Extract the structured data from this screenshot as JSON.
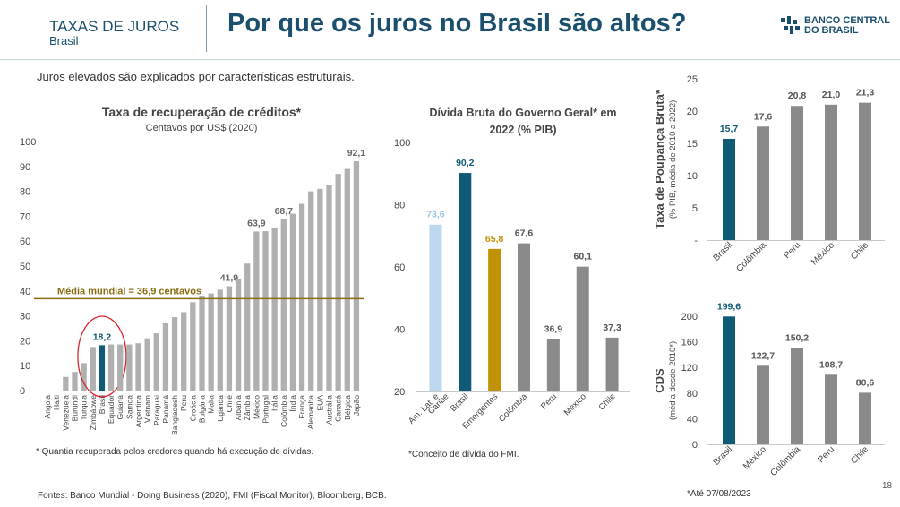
{
  "header": {
    "section": "TAXAS DE JUROS",
    "subsection": "Brasil",
    "title": "Por que os juros no Brasil são altos?",
    "logo_line1": "BANCO CENTRAL",
    "logo_line2": "DO BRASIL"
  },
  "subtitle": "Juros elevados são explicados por características estruturais.",
  "notes": {
    "left": "* Quantia recuperada pelos credores quando há execução de dívidas.",
    "middle": "*Conceito de dívida do FMI.",
    "right": "*Até 07/08/2023",
    "sources": "Fontes: Banco Mundial - Doing Business (2020), FMI (Fiscal Monitor), Bloomberg, BCB.",
    "page": "18"
  },
  "colors": {
    "highlight": "#0f5a74",
    "gray": "#b0b0b0",
    "darkgray": "#8a8a8a",
    "light_blue": "#bcd7ee",
    "gold": "#c29206",
    "average_line": "#8a6d12",
    "circle": "#d9232b",
    "title_blue": "#1b4f6e"
  },
  "chart_data": [
    {
      "type": "bar",
      "title": "Taxa de recuperação de créditos*",
      "subtitle": "Centavos por US$ (2020)",
      "ylim": [
        0,
        100
      ],
      "yticks": [
        "0",
        "10",
        "20",
        "30",
        "40",
        "50",
        "60",
        "70",
        "80",
        "90",
        "100"
      ],
      "categories": [
        "Angola",
        "Haiti",
        "Venezuela",
        "Burundi",
        "Turquia",
        "Zimbábwe",
        "Brasil",
        "Equador",
        "Guiana",
        "Samoa",
        "Argentina",
        "Vietnam",
        "Paraguai",
        "Panamá",
        "Bangladesh",
        "Peru",
        "Croácia",
        "Bulgária",
        "Malta",
        "Uganda",
        "Chile",
        "Albânia",
        "Zâmbia",
        "México",
        "Portugal",
        "Itália",
        "Colômbia",
        "Índia",
        "França",
        "Alemanha",
        "EUA",
        "Austrália",
        "Canadá",
        "Bélgica",
        "Japão"
      ],
      "values": [
        0,
        0,
        5.5,
        7.5,
        11,
        17.5,
        18.2,
        18.5,
        18.5,
        18.5,
        19,
        21,
        23,
        27,
        29.5,
        31.5,
        35.5,
        38,
        39,
        40.5,
        41.9,
        45,
        51,
        63.9,
        64,
        65.5,
        68.7,
        71,
        75,
        80,
        81,
        82.5,
        87,
        89,
        92.1
      ],
      "value_labels": {
        "Brasil": "18,2",
        "Chile": "41,9",
        "México": "63,9",
        "Colômbia": "68,7",
        "Japão": "92,1"
      },
      "highlight": "Brasil",
      "average": {
        "value": 36.9,
        "label": "Média mundial = 36,9 centavos"
      },
      "grid": false
    },
    {
      "type": "bar",
      "title": "Dívida Bruta do Governo Geral* em 2022 (% PIB)",
      "title_lines": [
        "Dívida Bruta do Governo Geral* em",
        "2022 (% PIB)"
      ],
      "ylim": [
        20,
        100
      ],
      "yticks": [
        "20",
        "40",
        "60",
        "80",
        "100"
      ],
      "categories": [
        "Am. Lat. e Caribe",
        "Brasil",
        "Emergentes",
        "Colômbia",
        "Peru",
        "México",
        "Chile"
      ],
      "category_lines": [
        [
          "Am. Lat. e",
          "Caribe"
        ],
        [
          "Brasil"
        ],
        [
          "Emergentes"
        ],
        [
          "Colômbia"
        ],
        [
          "Peru"
        ],
        [
          "México"
        ],
        [
          "Chile"
        ]
      ],
      "values": [
        73.6,
        90.2,
        65.8,
        67.6,
        36.9,
        60.1,
        37.3
      ],
      "value_labels": [
        "73,6",
        "90,2",
        "65,8",
        "67,6",
        "36,9",
        "60,1",
        "37,3"
      ],
      "bar_colors": [
        "light_blue",
        "highlight",
        "gold",
        "darkgray",
        "darkgray",
        "darkgray",
        "darkgray"
      ],
      "grid": false
    },
    {
      "type": "bar",
      "ylabel": "Taxa de Poupança Bruta*",
      "ylabel_sub": "(% PIB, média de 2010 a 2022)",
      "ylim": [
        0,
        25
      ],
      "yticks": [
        "-",
        "5",
        "10",
        "15",
        "20",
        "25"
      ],
      "categories": [
        "Brasil",
        "Colômbia",
        "Peru",
        "México",
        "Chile"
      ],
      "values": [
        15.7,
        17.6,
        20.8,
        21.0,
        21.3
      ],
      "value_labels": [
        "15,7",
        "17,6",
        "20,8",
        "21,0",
        "21,3"
      ],
      "highlight": "Brasil",
      "grid": false
    },
    {
      "type": "bar",
      "ylabel": "CDS",
      "ylabel_sub": "(média desde 2010*)",
      "ylim": [
        0,
        200
      ],
      "yticks": [
        "0",
        "40",
        "80",
        "120",
        "160",
        "200"
      ],
      "categories": [
        "Brasil",
        "México",
        "Colômbia",
        "Peru",
        "Chile"
      ],
      "values": [
        199.6,
        122.7,
        150.2,
        108.7,
        80.6
      ],
      "value_labels": [
        "199,6",
        "122,7",
        "150,2",
        "108,7",
        "80,6"
      ],
      "highlight": "Brasil",
      "grid": false
    }
  ]
}
